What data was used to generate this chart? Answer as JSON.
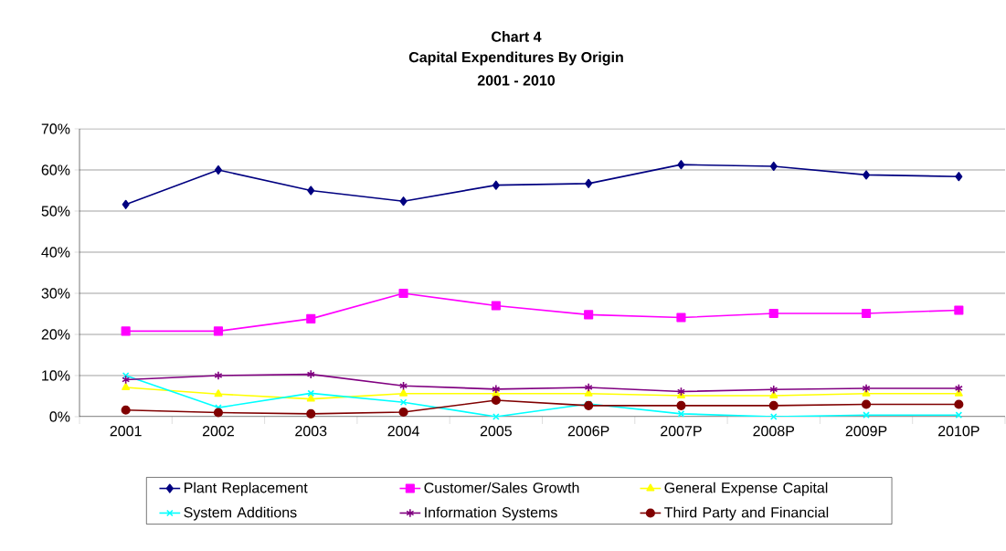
{
  "chart_data": {
    "type": "line",
    "annotations": [
      "Chart 4"
    ],
    "title": "Capital Expenditures By Origin",
    "subtitle": "2001 - 2010",
    "categories": [
      "2001",
      "2002",
      "2003",
      "2004",
      "2005",
      "2006P",
      "2007P",
      "2008P",
      "2009P",
      "2010P"
    ],
    "ylim": [
      0,
      70
    ],
    "yticks": [
      {
        "value": 0,
        "label": "0%"
      },
      {
        "value": 10,
        "label": "10%"
      },
      {
        "value": 20,
        "label": "20%"
      },
      {
        "value": 30,
        "label": "30%"
      },
      {
        "value": 40,
        "label": "40%"
      },
      {
        "value": 50,
        "label": "50%"
      },
      {
        "value": 60,
        "label": "60%"
      },
      {
        "value": 70,
        "label": "70%"
      }
    ],
    "grid": "y",
    "legend": "bottom",
    "line_style": "solid",
    "series": [
      {
        "name": "Plant Replacement",
        "color": "#000080",
        "marker": "diamond",
        "values": [
          51.6,
          60,
          55,
          52.4,
          56.3,
          56.7,
          61.3,
          60.9,
          58.8,
          58.4
        ]
      },
      {
        "name": "Customer/Sales Growth",
        "color": "#ff00ff",
        "marker": "square",
        "values": [
          20.8,
          20.8,
          23.8,
          30,
          27,
          24.8,
          24.1,
          25.1,
          25.1,
          25.9
        ]
      },
      {
        "name": "General Expense Capital",
        "color": "#ffff00",
        "marker": "triangle",
        "values": [
          7.1,
          5.5,
          4.3,
          5.6,
          5.6,
          5.6,
          5.1,
          5.1,
          5.6,
          5.6
        ]
      },
      {
        "name": "System Additions",
        "color": "#00ffff",
        "marker": "cross",
        "values": [
          10,
          2.2,
          5.7,
          3.5,
          0,
          3.1,
          0.7,
          0,
          0.4,
          0.4
        ]
      },
      {
        "name": "Information Systems",
        "color": "#800080",
        "marker": "cross",
        "values": [
          9,
          10,
          10.3,
          7.5,
          6.7,
          7.1,
          6.1,
          6.6,
          6.9,
          6.9
        ]
      },
      {
        "name": "Third Party and Financial",
        "color": "#800000",
        "marker": "circle",
        "values": [
          1.6,
          1,
          0.7,
          1.1,
          4,
          2.7,
          2.7,
          2.7,
          3,
          3
        ]
      }
    ]
  }
}
